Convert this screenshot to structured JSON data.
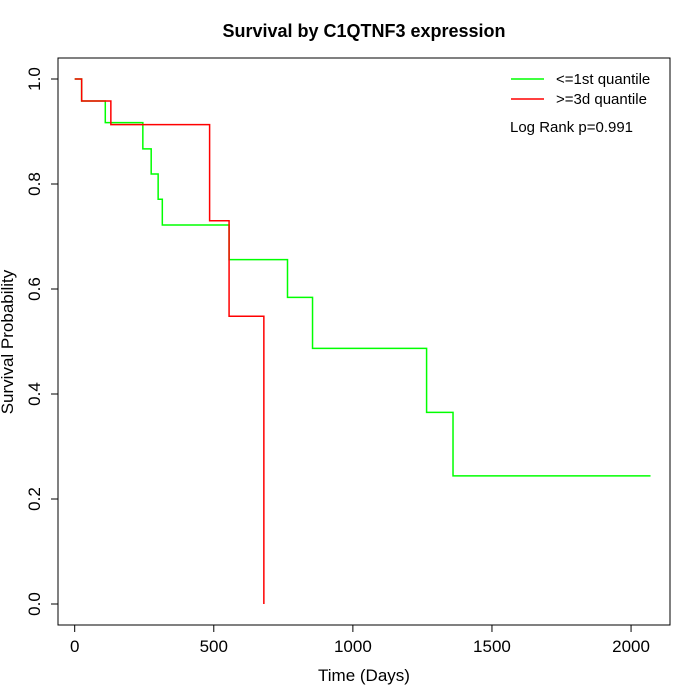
{
  "chart_data": {
    "type": "line",
    "title": "Survival by C1QTNF3 expression",
    "xlabel": "Time (Days)",
    "ylabel": "Survival Probability",
    "xlim": [
      -60,
      2140
    ],
    "ylim": [
      -0.04,
      1.04
    ],
    "x_ticks": [
      0,
      500,
      1000,
      1500,
      2000
    ],
    "x_tick_labels": [
      "0",
      "500",
      "1000",
      "1500",
      "2000"
    ],
    "y_ticks": [
      0.0,
      0.2,
      0.4,
      0.6,
      0.8,
      1.0
    ],
    "y_tick_labels": [
      "0.0",
      "0.2",
      "0.4",
      "0.6",
      "0.8",
      "1.0"
    ],
    "grid": false,
    "legend_position": "top-right",
    "annotation": "Log Rank p=0.991",
    "series": [
      {
        "name": "<=1st quantile",
        "color": "#00ff00",
        "steps": [
          [
            0,
            1.0
          ],
          [
            25,
            0.958
          ],
          [
            110,
            0.917
          ],
          [
            245,
            0.867
          ],
          [
            275,
            0.819
          ],
          [
            300,
            0.771
          ],
          [
            315,
            0.722
          ],
          [
            555,
            0.656
          ],
          [
            765,
            0.584
          ],
          [
            855,
            0.487
          ],
          [
            1265,
            0.365
          ],
          [
            1360,
            0.244
          ],
          [
            2070,
            0.244
          ]
        ]
      },
      {
        "name": ">=3d quantile",
        "color": "#ff0000",
        "steps": [
          [
            0,
            1.0
          ],
          [
            25,
            0.958
          ],
          [
            130,
            0.913
          ],
          [
            485,
            0.73
          ],
          [
            555,
            0.548
          ],
          [
            680,
            0.0
          ]
        ]
      }
    ]
  }
}
